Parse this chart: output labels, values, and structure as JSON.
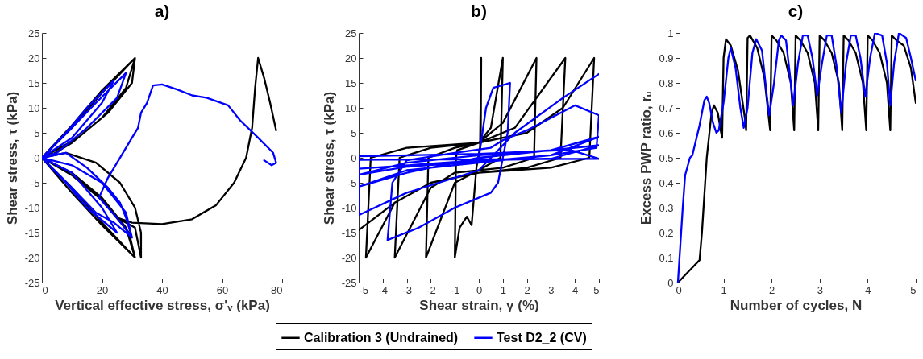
{
  "chart_data": [
    {
      "type": "line",
      "title": "a)",
      "xlabel": "Vertical effective stress, σ'ᵥ (kPa)",
      "ylabel": "Shear stress, τ (kPa)",
      "xlim": [
        0,
        80
      ],
      "ylim": [
        -25,
        25
      ],
      "xticks": [
        0,
        20,
        40,
        60,
        80
      ],
      "yticks": [
        -25,
        -20,
        -15,
        -10,
        -5,
        0,
        5,
        10,
        15,
        20,
        25
      ],
      "series": [
        {
          "color": "#000000",
          "x": [
            0,
            10,
            20,
            31,
            28,
            20,
            10,
            3,
            0,
            10,
            20,
            31,
            28,
            20,
            10,
            0,
            10,
            20,
            31,
            30,
            22,
            12,
            0,
            10,
            20,
            31,
            29,
            20,
            10,
            0,
            8,
            18,
            26,
            31,
            33,
            33,
            31,
            25,
            30,
            40,
            50,
            58,
            64,
            68,
            70,
            71,
            72,
            74,
            76,
            78
          ],
          "values": [
            0,
            6,
            13,
            20,
            14,
            8,
            3,
            0.5,
            0,
            -6,
            -13,
            -20,
            -14,
            -8,
            -3,
            0,
            6.5,
            13.5,
            20,
            15,
            9,
            4,
            0,
            -7,
            -13.5,
            -20,
            -15,
            -8.5,
            -3.5,
            0,
            1,
            -1,
            -5,
            -10,
            -15,
            -20,
            -14,
            -12,
            -13,
            -13.3,
            -12.3,
            -9.5,
            -5,
            0,
            6,
            14,
            20,
            16,
            11,
            5.5
          ]
        },
        {
          "color": "#0000ff",
          "x": [
            0,
            8,
            15,
            24,
            20,
            10,
            0,
            8,
            15,
            25,
            20,
            10,
            0,
            10,
            18,
            28,
            25,
            15,
            5,
            0,
            10,
            18,
            24,
            30,
            28,
            20,
            10,
            0,
            8,
            15,
            22,
            26,
            28,
            30,
            25,
            19,
            22,
            27,
            30,
            32,
            33,
            35,
            37,
            40,
            45,
            50,
            55,
            62,
            66,
            72,
            77,
            78,
            76.5,
            74
          ],
          "values": [
            0,
            5,
            10,
            15.5,
            11,
            4,
            0,
            -5,
            -10,
            -15,
            -10,
            -3,
            0,
            6,
            11,
            17,
            12,
            6,
            1,
            0,
            -6,
            -11,
            -13,
            -16,
            -11,
            -5,
            -1.5,
            0,
            1,
            -2,
            -6,
            -9,
            -12,
            -16,
            -12,
            -8,
            -4,
            1,
            4,
            6,
            9,
            11,
            14.5,
            14.7,
            13.7,
            12.5,
            12,
            10.5,
            7.5,
            4,
            1,
            -1,
            -1.5,
            -0.5
          ]
        }
      ]
    },
    {
      "type": "line",
      "title": "b)",
      "xlabel": "Shear strain, γ (%)",
      "ylabel": "Shear stress, τ (kPa)",
      "xlim": [
        -5,
        5
      ],
      "ylim": [
        -25,
        25
      ],
      "xticks": [
        -5,
        -4,
        -3,
        -2,
        -1,
        0,
        1,
        2,
        3,
        4,
        5
      ],
      "yticks": [
        -25,
        -20,
        -15,
        -10,
        -5,
        0,
        5,
        10,
        15,
        20,
        25
      ],
      "legend": "bottom",
      "series": [
        {
          "name": "Calibration 3 (Undrained)",
          "color": "#000000",
          "x": [
            0,
            0.05,
            0.1,
            0.08,
            -0.1,
            -0.3,
            -0.5,
            -0.8,
            -1,
            -0.95,
            -0.9,
            0,
            0.5,
            1,
            0.9,
            0,
            -1,
            -2.2,
            -2.1,
            -1,
            0,
            1,
            2.4,
            2.3,
            1,
            -1,
            -2,
            -3.5,
            -3.3,
            -2,
            0,
            1.5,
            3.6,
            3.4,
            2,
            0,
            -2,
            -3.5,
            -4.7,
            -4.5,
            -3,
            0,
            2,
            3.5,
            4.8,
            4.6,
            3,
            0,
            -2,
            -3.5,
            -5
          ],
          "values": [
            0,
            2,
            20,
            3,
            -2,
            -13.5,
            -11.8,
            -14,
            -20,
            0,
            1.5,
            3,
            6,
            20,
            0,
            -2.5,
            -5,
            -20,
            0,
            2,
            3,
            7,
            20,
            0,
            -2,
            -3,
            -6,
            -20,
            0,
            2,
            3,
            6,
            20,
            0,
            -2,
            -3,
            -5,
            -9,
            -20,
            0,
            2,
            3,
            5,
            10,
            20,
            0,
            -2,
            -3,
            -5,
            -9,
            -14.5
          ]
        },
        {
          "name": "Test D2_2 (CV)",
          "color": "#0000ff",
          "x": [
            0,
            0.3,
            0.6,
            1.3,
            1.2,
            0.8,
            0.5,
            -1,
            -2.5,
            -3.8,
            -3.6,
            -3,
            -1,
            0.5,
            1,
            2,
            3,
            4,
            5,
            4.9,
            3,
            0,
            -3,
            -5,
            -3,
            0,
            3,
            5,
            3,
            0,
            -3,
            -5,
            -3,
            0,
            3,
            5,
            3,
            0,
            -5,
            -5,
            0,
            3.8,
            5,
            0,
            -5,
            -5,
            -3,
            0,
            1.5,
            3.5,
            5
          ],
          "values": [
            0,
            10,
            14,
            15,
            5,
            -5,
            -7,
            -10,
            -14,
            -16.5,
            -5,
            -0.5,
            1,
            2,
            3.5,
            5.5,
            8,
            10.5,
            8.5,
            2,
            0.5,
            -1,
            -2.5,
            -5.8,
            -3,
            0,
            1.5,
            4.2,
            0.5,
            -0.8,
            -1.8,
            -3.4,
            -1,
            0.5,
            1.5,
            2.5,
            -0.2,
            -0.5,
            -2.2,
            0.3,
            0.8,
            1.6,
            -0.2,
            -0.3,
            -0.4,
            -11.5,
            -7,
            -2.5,
            5,
            12,
            16.8
          ]
        }
      ]
    },
    {
      "type": "line",
      "title": "c)",
      "xlabel": "Number of cycles, N",
      "ylabel": "Excess PWP ratio, rᵤ",
      "xlim": [
        0,
        5
      ],
      "ylim": [
        0,
        1
      ],
      "xticks": [
        0,
        1,
        2,
        3,
        4,
        5
      ],
      "yticks": [
        0,
        0.1,
        0.2,
        0.3,
        0.4,
        0.5,
        0.6,
        0.7,
        0.8,
        0.9,
        1
      ],
      "series": [
        {
          "color": "#000000",
          "x": [
            0.05,
            0.3,
            0.5,
            0.55,
            0.65,
            0.75,
            0.8,
            0.88,
            0.95,
            0.97,
            1.0,
            1.05,
            1.15,
            1.3,
            1.45,
            1.47,
            1.5,
            1.55,
            1.7,
            1.85,
            1.97,
            2.0,
            2.1,
            2.25,
            2.4,
            2.47,
            2.5,
            2.6,
            2.75,
            2.9,
            2.97,
            3.0,
            3.1,
            3.25,
            3.4,
            3.47,
            3.5,
            3.6,
            3.75,
            3.9,
            3.97,
            4.0,
            4.1,
            4.25,
            4.4,
            4.47,
            4.5,
            4.6,
            4.75,
            4.9,
            5
          ],
          "values": [
            0,
            0.05,
            0.09,
            0.2,
            0.5,
            0.68,
            0.71,
            0.68,
            0.6,
            0.58,
            0.9,
            0.975,
            0.95,
            0.85,
            0.65,
            0.61,
            0.98,
            0.99,
            0.94,
            0.82,
            0.61,
            0.99,
            0.97,
            0.92,
            0.8,
            0.61,
            0.99,
            0.97,
            0.92,
            0.8,
            0.61,
            0.99,
            0.97,
            0.92,
            0.8,
            0.61,
            0.99,
            0.97,
            0.92,
            0.8,
            0.61,
            0.99,
            0.97,
            0.92,
            0.8,
            0.61,
            0.99,
            0.97,
            0.95,
            0.86,
            0.72
          ]
        },
        {
          "color": "#0000ff",
          "x": [
            0.05,
            0.1,
            0.15,
            0.2,
            0.3,
            0.35,
            0.4,
            0.5,
            0.6,
            0.65,
            0.7,
            0.78,
            0.85,
            0.9,
            1.0,
            1.1,
            1.15,
            1.25,
            1.35,
            1.42,
            1.5,
            1.6,
            1.68,
            1.8,
            1.9,
            1.95,
            2.05,
            2.15,
            2.2,
            2.3,
            2.4,
            2.45,
            2.55,
            2.65,
            2.75,
            2.85,
            2.95,
            3.05,
            3.15,
            3.25,
            3.35,
            3.45,
            3.55,
            3.65,
            3.75,
            3.85,
            3.95,
            4.05,
            4.15,
            4.3,
            4.4,
            4.47,
            4.55,
            4.65,
            4.8,
            4.9,
            5
          ],
          "values": [
            0,
            0.15,
            0.3,
            0.43,
            0.5,
            0.51,
            0.55,
            0.63,
            0.73,
            0.745,
            0.72,
            0.64,
            0.6,
            0.61,
            0.72,
            0.9,
            0.94,
            0.86,
            0.7,
            0.62,
            0.7,
            0.92,
            0.975,
            0.93,
            0.75,
            0.67,
            0.8,
            0.97,
            0.99,
            0.97,
            0.8,
            0.71,
            0.88,
            0.99,
            0.99,
            0.9,
            0.75,
            0.88,
            0.99,
            0.99,
            0.87,
            0.68,
            0.88,
            0.99,
            0.99,
            0.9,
            0.745,
            0.9,
            1.0,
            0.99,
            0.88,
            0.71,
            0.88,
            1.0,
            0.98,
            0.9,
            0.81
          ]
        }
      ]
    }
  ]
}
